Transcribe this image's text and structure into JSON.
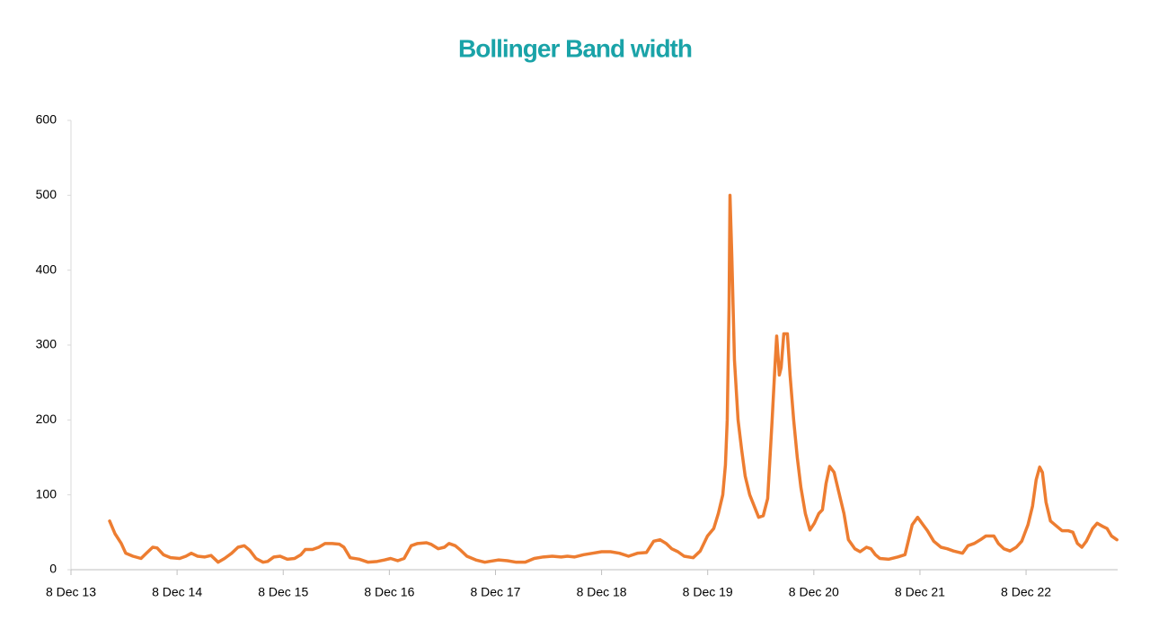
{
  "chart_data": {
    "type": "line",
    "title": "Bollinger Band width",
    "x": [
      2014.301,
      2014.352,
      2014.411,
      2014.453,
      2014.521,
      2014.597,
      2014.648,
      2014.707,
      2014.749,
      2014.808,
      2014.876,
      2014.961,
      2015.02,
      2015.071,
      2015.13,
      2015.198,
      2015.257,
      2015.324,
      2015.384,
      2015.451,
      2015.511,
      2015.57,
      2015.621,
      2015.68,
      2015.747,
      2015.79,
      2015.849,
      2015.908,
      2015.976,
      2016.044,
      2016.103,
      2016.145,
      2016.213,
      2016.272,
      2016.331,
      2016.399,
      2016.467,
      2016.509,
      2016.568,
      2016.653,
      2016.737,
      2016.822,
      2016.89,
      2016.949,
      2017.016,
      2017.076,
      2017.143,
      2017.203,
      2017.287,
      2017.329,
      2017.397,
      2017.456,
      2017.499,
      2017.558,
      2017.609,
      2017.668,
      2017.752,
      2017.837,
      2017.879,
      2017.964,
      2018.049,
      2018.133,
      2018.218,
      2018.302,
      2018.387,
      2018.472,
      2018.556,
      2018.615,
      2018.683,
      2018.768,
      2018.852,
      2018.937,
      2019.021,
      2019.106,
      2019.191,
      2019.275,
      2019.36,
      2019.428,
      2019.487,
      2019.546,
      2019.597,
      2019.656,
      2019.715,
      2019.8,
      2019.867,
      2019.935,
      2019.994,
      2020.037,
      2020.079,
      2020.104,
      2020.121,
      2020.138,
      2020.147,
      2020.164,
      2020.189,
      2020.223,
      2020.257,
      2020.29,
      2020.333,
      2020.375,
      2020.417,
      2020.46,
      2020.502,
      2020.544,
      2020.57,
      2020.587,
      2020.612,
      2020.629,
      2020.654,
      2020.688,
      2020.713,
      2020.747,
      2020.781,
      2020.815,
      2020.857,
      2020.9,
      2020.942,
      2020.984,
      2021.018,
      2021.052,
      2021.086,
      2021.128,
      2021.17,
      2021.221,
      2021.263,
      2021.323,
      2021.373,
      2021.433,
      2021.475,
      2021.517,
      2021.559,
      2021.644,
      2021.729,
      2021.796,
      2021.83,
      2021.864,
      2021.915,
      2021.966,
      2022.008,
      2022.067,
      2022.135,
      2022.194,
      2022.253,
      2022.338,
      2022.389,
      2022.448,
      2022.507,
      2022.558,
      2022.634,
      2022.676,
      2022.727,
      2022.786,
      2022.845,
      2022.896,
      2022.955,
      2022.998,
      2023.032,
      2023.065,
      2023.091,
      2023.125,
      2023.167,
      2023.226,
      2023.277,
      2023.336,
      2023.378,
      2023.421,
      2023.463,
      2023.505,
      2023.564,
      2023.607,
      2023.657,
      2023.7,
      2023.742,
      2023.793
    ],
    "values": [
      65,
      48,
      35,
      22,
      18,
      15,
      22,
      30,
      29,
      20,
      16,
      15,
      18,
      22,
      18,
      17,
      19,
      10,
      15,
      22,
      30,
      32,
      26,
      15,
      10,
      11,
      17,
      18,
      14,
      15,
      20,
      27,
      27,
      30,
      35,
      35,
      34,
      30,
      16,
      14,
      10,
      11,
      13,
      15,
      12,
      15,
      32,
      35,
      36,
      34,
      28,
      30,
      35,
      32,
      26,
      18,
      13,
      10,
      11,
      13,
      12,
      10,
      10,
      15,
      17,
      18,
      17,
      18,
      17,
      20,
      22,
      24,
      24,
      22,
      18,
      22,
      23,
      38,
      40,
      35,
      28,
      24,
      18,
      16,
      25,
      45,
      55,
      75,
      100,
      140,
      200,
      350,
      500,
      420,
      280,
      200,
      160,
      125,
      100,
      85,
      70,
      72,
      95,
      200,
      270,
      312,
      260,
      270,
      315,
      315,
      260,
      200,
      150,
      110,
      75,
      53,
      62,
      75,
      80,
      115,
      138,
      130,
      105,
      75,
      40,
      28,
      24,
      30,
      28,
      20,
      15,
      14,
      17,
      20,
      40,
      60,
      70,
      60,
      52,
      38,
      30,
      28,
      25,
      22,
      32,
      35,
      40,
      45,
      45,
      35,
      28,
      25,
      30,
      38,
      60,
      85,
      120,
      137,
      130,
      90,
      65,
      58,
      52,
      52,
      50,
      35,
      30,
      38,
      55,
      62,
      58,
      55,
      45,
      40
    ],
    "color": "#ed7d31",
    "xlim": [
      2013.937,
      2023.8
    ],
    "xticks": [
      {
        "value": 2013.937,
        "label": "8 Dec 13"
      },
      {
        "value": 2014.937,
        "label": "8 Dec 14"
      },
      {
        "value": 2015.937,
        "label": "8 Dec 15"
      },
      {
        "value": 2016.937,
        "label": "8 Dec 16"
      },
      {
        "value": 2017.937,
        "label": "8 Dec 17"
      },
      {
        "value": 2018.937,
        "label": "8 Dec 18"
      },
      {
        "value": 2019.937,
        "label": "8 Dec 19"
      },
      {
        "value": 2020.937,
        "label": "8 Dec 20"
      },
      {
        "value": 2021.937,
        "label": "8 Dec 21"
      },
      {
        "value": 2022.937,
        "label": "8 Dec 22"
      }
    ],
    "ylim": [
      0,
      600
    ],
    "yticks": [
      0,
      100,
      200,
      300,
      400,
      500,
      600
    ],
    "grid": false
  }
}
